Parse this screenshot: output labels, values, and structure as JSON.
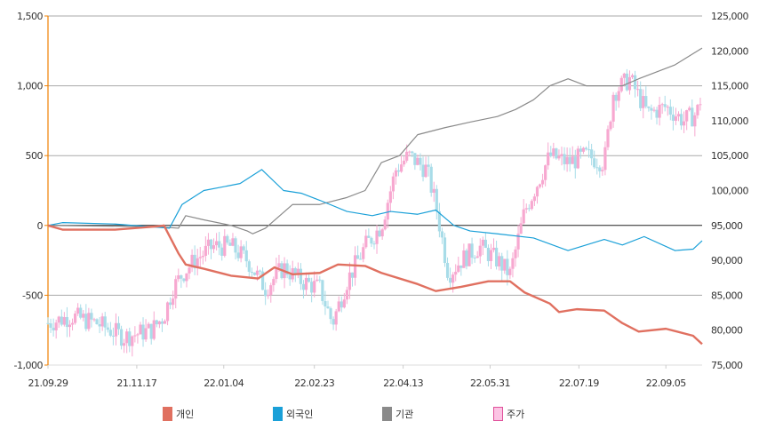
{
  "chart_data": {
    "type": "line",
    "title": "",
    "y_left": {
      "min": -1000,
      "max": 1500,
      "ticks": [
        "1,500",
        "1,000",
        "500",
        "0",
        "-500",
        "-1,000"
      ],
      "tick_values": [
        1500,
        1000,
        500,
        0,
        -500,
        -1000
      ]
    },
    "y_right": {
      "min": 75000,
      "max": 125000,
      "ticks": [
        "125,000",
        "120,000",
        "115,000",
        "110,000",
        "105,000",
        "100,000",
        "95,000",
        "90,000",
        "85,000",
        "80,000",
        "75,000"
      ],
      "tick_values": [
        125000,
        120000,
        115000,
        110000,
        105000,
        100000,
        95000,
        90000,
        85000,
        80000,
        75000
      ]
    },
    "x_unit": "days since 21.09.29",
    "x_range": [
      0,
      361
    ],
    "x_ticks": [
      {
        "t": 0,
        "label": "21.09.29"
      },
      {
        "t": 49,
        "label": "21.11.17"
      },
      {
        "t": 97,
        "label": "22.01.04"
      },
      {
        "t": 147,
        "label": "22.02.23"
      },
      {
        "t": 196,
        "label": "22.04.13"
      },
      {
        "t": 244,
        "label": "22.05.31"
      },
      {
        "t": 293,
        "label": "22.07.19"
      },
      {
        "t": 341,
        "label": "22.09.05"
      }
    ],
    "series": [
      {
        "name": "개인",
        "color": "#e07060",
        "axis": "left",
        "t": [
          0,
          8,
          37,
          62,
          64,
          72,
          76,
          86,
          101,
          116,
          125,
          135,
          150,
          160,
          175,
          184,
          204,
          214,
          228,
          243,
          255,
          263,
          277,
          282,
          292,
          307,
          317,
          326,
          341,
          356,
          361
        ],
        "values": [
          0,
          -30,
          -30,
          -5,
          0,
          -200,
          -280,
          -310,
          -360,
          -380,
          -300,
          -350,
          -340,
          -280,
          -290,
          -340,
          -420,
          -470,
          -440,
          -400,
          -400,
          -480,
          -560,
          -620,
          -600,
          -610,
          -700,
          -760,
          -740,
          -790,
          -850
        ]
      },
      {
        "name": "외국인",
        "color": "#1aa0d8",
        "axis": "left",
        "t": [
          0,
          8,
          37,
          67,
          74,
          86,
          106,
          118,
          130,
          140,
          150,
          165,
          179,
          189,
          204,
          214,
          224,
          233,
          248,
          268,
          287,
          307,
          317,
          329,
          346,
          356,
          361
        ],
        "values": [
          0,
          20,
          10,
          -20,
          150,
          250,
          300,
          400,
          250,
          230,
          180,
          100,
          70,
          100,
          80,
          110,
          0,
          -40,
          -60,
          -90,
          -180,
          -100,
          -140,
          -80,
          -180,
          -170,
          -110
        ]
      },
      {
        "name": "기관",
        "color": "#8a8a8a",
        "axis": "left",
        "t": [
          0,
          62,
          72,
          76,
          86,
          101,
          110,
          113,
          120,
          135,
          150,
          165,
          175,
          184,
          194,
          204,
          219,
          233,
          248,
          258,
          268,
          277,
          287,
          297,
          317,
          326,
          346,
          361
        ],
        "values": [
          0,
          -10,
          -20,
          70,
          40,
          0,
          -40,
          -60,
          -20,
          150,
          150,
          200,
          250,
          450,
          500,
          650,
          700,
          740,
          780,
          830,
          900,
          1000,
          1050,
          1000,
          1000,
          1050,
          1150,
          1270
        ]
      },
      {
        "name": "주가",
        "color": "#f7a8d0",
        "axis": "right",
        "kind": "candlestick",
        "up_color": "#f7a8d0",
        "down_color": "#a8dce8",
        "t": [
          0,
          13,
          27,
          42,
          57,
          64,
          69,
          74,
          81,
          91,
          101,
          110,
          120,
          130,
          140,
          150,
          157,
          165,
          175,
          184,
          192,
          199,
          209,
          214,
          221,
          228,
          238,
          248,
          255,
          263,
          270,
          277,
          287,
          297,
          307,
          312,
          321,
          331,
          341,
          351,
          358,
          361
        ],
        "close": [
          81000,
          82000,
          81000,
          79000,
          80000,
          82000,
          86000,
          88000,
          90000,
          92000,
          92000,
          90000,
          86000,
          89000,
          87000,
          86000,
          81000,
          87000,
          92000,
          95000,
          103000,
          105000,
          103000,
          98000,
          88000,
          90000,
          92000,
          90000,
          88000,
          97000,
          101000,
          105000,
          104000,
          105000,
          104000,
          114000,
          116000,
          111000,
          112000,
          110000,
          111000,
          114000
        ]
      }
    ],
    "legend": {
      "position": "bottom-center",
      "items": [
        {
          "label": "개인",
          "color": "#e07060"
        },
        {
          "label": "외국인",
          "color": "#1aa0d8"
        },
        {
          "label": "기관",
          "color": "#8a8a8a"
        },
        {
          "label": "주가",
          "color": "#fcc4e4"
        }
      ]
    },
    "grid": true
  }
}
